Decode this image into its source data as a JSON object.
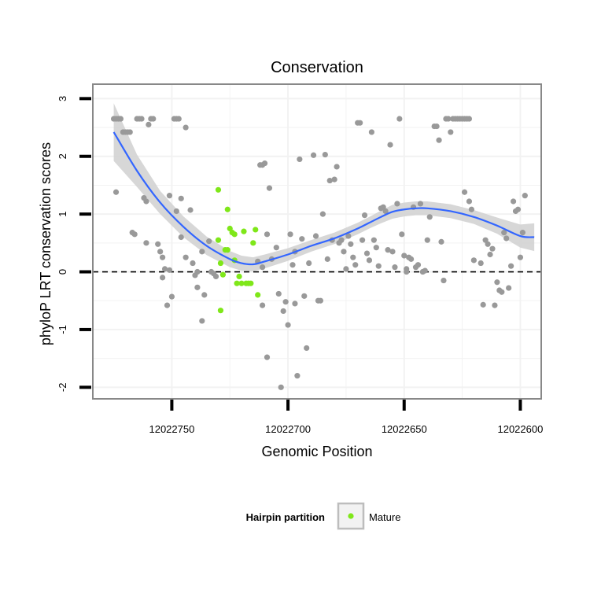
{
  "chart_data": {
    "type": "scatter",
    "title": "Conservation",
    "xlabel": "Genomic Position",
    "ylabel": "phyloP LRT conservation scores",
    "x_reversed": true,
    "xlim": [
      12022784,
      12022591
    ],
    "ylim": [
      -2.2,
      3.25
    ],
    "x_ticks": [
      12022750,
      12022700,
      12022650,
      12022600
    ],
    "x_tick_labels": [
      "12022750",
      "12022700",
      "12022650",
      "12022600"
    ],
    "y_ticks": [
      -2,
      -1,
      0,
      1,
      2,
      3
    ],
    "y_tick_labels": [
      "-2",
      "-1",
      "0",
      "1",
      "2",
      "3"
    ],
    "grid": true,
    "reference_line": {
      "y": 0,
      "style": "dashed"
    },
    "legend": {
      "position": "bottom",
      "title": "Hairpin partition",
      "entries": [
        {
          "label": "Mature",
          "color": "#7FE719"
        }
      ]
    },
    "colors": {
      "points": "#999999",
      "mature": "#7FE719",
      "smooth": "#3366FF",
      "band": "#D3D3D3",
      "grid": "#F2F2F2",
      "border": "#888888"
    },
    "series": [
      {
        "points": [
          [
            12022775,
            2.65
          ],
          [
            12022774,
            2.65
          ],
          [
            12022773,
            2.65
          ],
          [
            12022772,
            2.65
          ],
          [
            12022771,
            2.42
          ],
          [
            12022770,
            2.42
          ],
          [
            12022769,
            2.42
          ],
          [
            12022768,
            2.42
          ],
          [
            12022765,
            2.65
          ],
          [
            12022764,
            2.65
          ],
          [
            12022763,
            2.65
          ],
          [
            12022760,
            2.55
          ],
          [
            12022759,
            2.65
          ],
          [
            12022758,
            2.65
          ],
          [
            12022749,
            2.65
          ],
          [
            12022748,
            2.65
          ],
          [
            12022747,
            2.65
          ],
          [
            12022744,
            2.5
          ],
          [
            12022774,
            1.38
          ],
          [
            12022762,
            1.28
          ],
          [
            12022761,
            1.22
          ],
          [
            12022767,
            0.68
          ],
          [
            12022766,
            0.65
          ],
          [
            12022761,
            0.5
          ],
          [
            12022756,
            0.48
          ],
          [
            12022755,
            0.35
          ],
          [
            12022754,
            0.25
          ],
          [
            12022753,
            0.05
          ],
          [
            12022754,
            -0.1
          ],
          [
            12022751,
            0.03
          ],
          [
            12022752,
            -0.58
          ],
          [
            12022750,
            -0.43
          ],
          [
            12022751,
            1.32
          ],
          [
            12022748,
            1.05
          ],
          [
            12022746,
            1.27
          ],
          [
            12022746,
            0.6
          ],
          [
            12022744,
            0.25
          ],
          [
            12022742,
            1.07
          ],
          [
            12022741,
            0.15
          ],
          [
            12022739,
            0.0
          ],
          [
            12022740,
            -0.06
          ],
          [
            12022739,
            -0.27
          ],
          [
            12022737,
            -0.85
          ],
          [
            12022737,
            0.35
          ],
          [
            12022736,
            -0.4
          ],
          [
            12022734,
            0.53
          ],
          [
            12022733,
            0.0
          ],
          [
            12022732,
            -0.03
          ],
          [
            12022731,
            -0.08
          ],
          [
            12022712,
            1.85
          ],
          [
            12022711,
            1.85
          ],
          [
            12022710,
            1.88
          ],
          [
            12022713,
            0.18
          ],
          [
            12022711,
            0.08
          ],
          [
            12022709,
            -1.48
          ],
          [
            12022708,
            1.45
          ],
          [
            12022709,
            0.65
          ],
          [
            12022707,
            0.22
          ],
          [
            12022705,
            0.42
          ],
          [
            12022704,
            -0.38
          ],
          [
            12022703,
            -2.0
          ],
          [
            12022702,
            -0.68
          ],
          [
            12022701,
            -0.52
          ],
          [
            12022700,
            -0.92
          ],
          [
            12022699,
            0.65
          ],
          [
            12022698,
            0.12
          ],
          [
            12022697,
            -0.55
          ],
          [
            12022696,
            -1.8
          ],
          [
            12022695,
            1.95
          ],
          [
            12022694,
            0.57
          ],
          [
            12022693,
            -0.42
          ],
          [
            12022692,
            -1.32
          ],
          [
            12022691,
            0.15
          ],
          [
            12022689,
            2.02
          ],
          [
            12022688,
            0.62
          ],
          [
            12022687,
            -0.5
          ],
          [
            12022686,
            -0.5
          ],
          [
            12022685,
            1.0
          ],
          [
            12022684,
            2.03
          ],
          [
            12022683,
            0.22
          ],
          [
            12022682,
            1.58
          ],
          [
            12022681,
            0.55
          ],
          [
            12022680,
            1.6
          ],
          [
            12022679,
            1.82
          ],
          [
            12022678,
            0.5
          ],
          [
            12022677,
            0.55
          ],
          [
            12022676,
            0.35
          ],
          [
            12022675,
            0.05
          ],
          [
            12022674,
            0.62
          ],
          [
            12022673,
            0.48
          ],
          [
            12022672,
            0.25
          ],
          [
            12022671,
            0.12
          ],
          [
            12022670,
            2.58
          ],
          [
            12022669,
            2.58
          ],
          [
            12022668,
            0.55
          ],
          [
            12022667,
            0.98
          ],
          [
            12022666,
            0.32
          ],
          [
            12022665,
            0.2
          ],
          [
            12022664,
            2.42
          ],
          [
            12022663,
            0.55
          ],
          [
            12022662,
            0.42
          ],
          [
            12022661,
            0.1
          ],
          [
            12022660,
            1.1
          ],
          [
            12022659,
            1.12
          ],
          [
            12022658,
            1.05
          ],
          [
            12022657,
            0.38
          ],
          [
            12022656,
            2.2
          ],
          [
            12022655,
            0.35
          ],
          [
            12022654,
            0.08
          ],
          [
            12022653,
            1.18
          ],
          [
            12022652,
            2.65
          ],
          [
            12022651,
            0.65
          ],
          [
            12022650,
            0.28
          ],
          [
            12022649,
            0.0
          ],
          [
            12022649,
            0.05
          ],
          [
            12022648,
            0.25
          ],
          [
            12022647,
            0.22
          ],
          [
            12022646,
            1.12
          ],
          [
            12022645,
            0.08
          ],
          [
            12022644,
            0.12
          ],
          [
            12022643,
            1.18
          ],
          [
            12022642,
            0.0
          ],
          [
            12022641,
            0.02
          ],
          [
            12022640,
            0.55
          ],
          [
            12022639,
            0.95
          ],
          [
            12022637,
            2.52
          ],
          [
            12022636,
            2.52
          ],
          [
            12022635,
            2.28
          ],
          [
            12022634,
            0.52
          ],
          [
            12022633,
            -0.15
          ],
          [
            12022632,
            2.65
          ],
          [
            12022631,
            2.65
          ],
          [
            12022630,
            2.42
          ],
          [
            12022629,
            2.65
          ],
          [
            12022628,
            2.65
          ],
          [
            12022627,
            2.65
          ],
          [
            12022626,
            2.65
          ],
          [
            12022625,
            2.65
          ],
          [
            12022624,
            2.65
          ],
          [
            12022623,
            2.65
          ],
          [
            12022622,
            2.65
          ],
          [
            12022624,
            1.38
          ],
          [
            12022622,
            1.22
          ],
          [
            12022621,
            1.08
          ],
          [
            12022620,
            0.2
          ],
          [
            12022617,
            0.15
          ],
          [
            12022616,
            -0.57
          ],
          [
            12022615,
            0.55
          ],
          [
            12022614,
            0.48
          ],
          [
            12022613,
            0.3
          ],
          [
            12022612,
            0.4
          ],
          [
            12022611,
            -0.58
          ],
          [
            12022610,
            -0.18
          ],
          [
            12022609,
            -0.32
          ],
          [
            12022608,
            -0.35
          ],
          [
            12022607,
            0.68
          ],
          [
            12022606,
            0.58
          ],
          [
            12022605,
            -0.28
          ],
          [
            12022604,
            0.1
          ],
          [
            12022603,
            1.22
          ],
          [
            12022602,
            1.05
          ],
          [
            12022601,
            1.08
          ],
          [
            12022600,
            0.25
          ],
          [
            12022599,
            0.68
          ],
          [
            12022598,
            1.32
          ],
          [
            12022711,
            -0.58
          ],
          [
            12022697,
            0.35
          ]
        ]
      },
      {
        "name": "Mature",
        "points": [
          [
            12022730,
            1.42
          ],
          [
            12022726,
            1.08
          ],
          [
            12022730,
            0.55
          ],
          [
            12022729,
            0.15
          ],
          [
            12022728,
            -0.05
          ],
          [
            12022727,
            0.38
          ],
          [
            12022726,
            0.38
          ],
          [
            12022725,
            0.75
          ],
          [
            12022724,
            0.68
          ],
          [
            12022723,
            0.65
          ],
          [
            12022722,
            -0.2
          ],
          [
            12022721,
            -0.08
          ],
          [
            12022720,
            -0.2
          ],
          [
            12022719,
            0.7
          ],
          [
            12022718,
            -0.2
          ],
          [
            12022717,
            -0.2
          ],
          [
            12022716,
            -0.2
          ],
          [
            12022715,
            0.5
          ],
          [
            12022714,
            0.73
          ],
          [
            12022713,
            -0.4
          ],
          [
            12022729,
            -0.67
          ],
          [
            12022723,
            0.2
          ]
        ]
      }
    ],
    "smooth": {
      "x": [
        12022775,
        12022765,
        12022755,
        12022745,
        12022735,
        12022725,
        12022720,
        12022715,
        12022710,
        12022700,
        12022690,
        12022680,
        12022670,
        12022665,
        12022660,
        12022655,
        12022650,
        12022645,
        12022640,
        12022630,
        12022620,
        12022610,
        12022600,
        12022594
      ],
      "y": [
        2.42,
        1.75,
        1.2,
        0.78,
        0.45,
        0.22,
        0.15,
        0.13,
        0.18,
        0.3,
        0.45,
        0.58,
        0.75,
        0.85,
        0.95,
        1.04,
        1.08,
        1.1,
        1.1,
        1.05,
        0.95,
        0.8,
        0.62,
        0.6
      ],
      "band_half_width": [
        0.5,
        0.28,
        0.2,
        0.18,
        0.16,
        0.14,
        0.13,
        0.12,
        0.12,
        0.11,
        0.1,
        0.1,
        0.1,
        0.1,
        0.11,
        0.12,
        0.12,
        0.12,
        0.12,
        0.12,
        0.12,
        0.14,
        0.2,
        0.24
      ]
    }
  }
}
